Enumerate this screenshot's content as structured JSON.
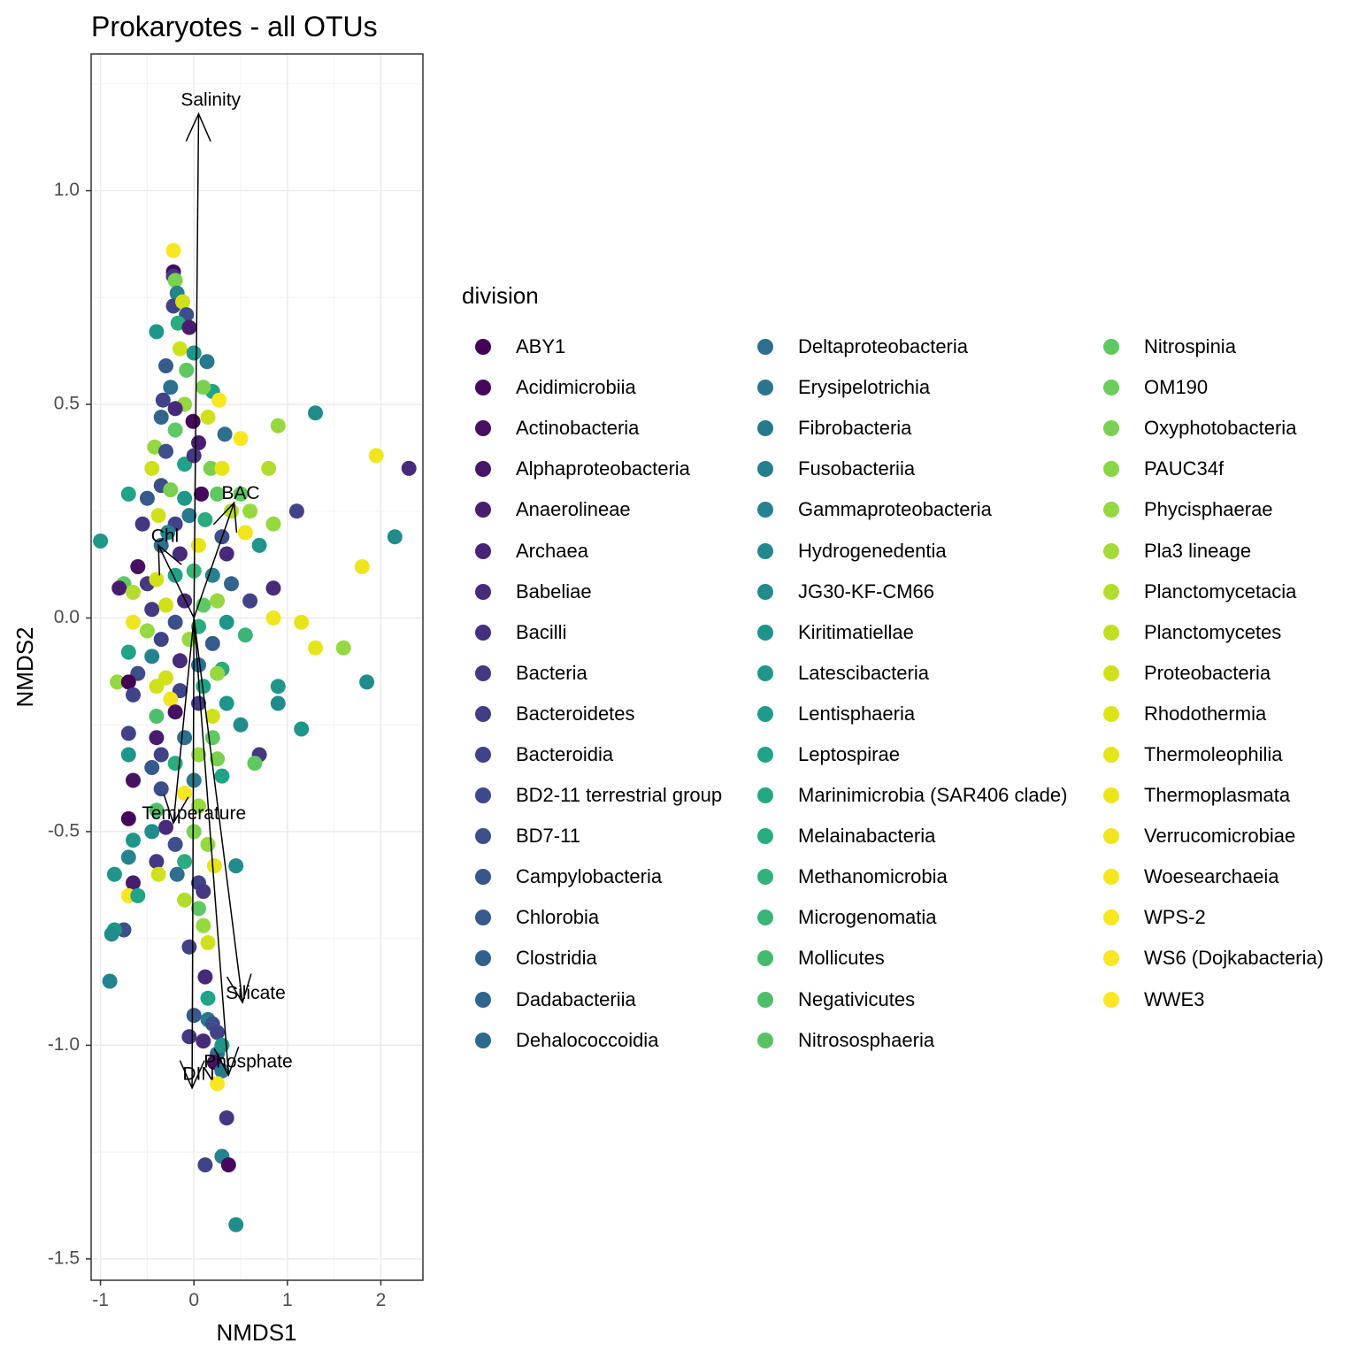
{
  "chart_data": {
    "type": "scatter",
    "title": "Prokaryotes - all OTUs",
    "xlabel": "NMDS1",
    "ylabel": "NMDS2",
    "xlim": [
      -1.1,
      2.45
    ],
    "ylim": [
      -1.55,
      1.32
    ],
    "x_ticks": [
      -1,
      0,
      1,
      2
    ],
    "x_tick_labels": [
      "-1",
      "0",
      "1",
      "2"
    ],
    "y_ticks": [
      -1.5,
      -1.0,
      -0.5,
      0.0,
      0.5,
      1.0
    ],
    "y_tick_labels": [
      "-1.5",
      "-1.0",
      "-0.5",
      "0.0",
      "0.5",
      "1.0"
    ],
    "grid": true,
    "legend_title": "division",
    "legend_position": "right",
    "divisions": [
      "ABY1",
      "Acidimicrobiia",
      "Actinobacteria",
      "Alphaproteobacteria",
      "Anaerolineae",
      "Archaea",
      "Babeliae",
      "Bacilli",
      "Bacteria",
      "Bacteroidetes",
      "Bacteroidia",
      "BD2-11 terrestrial group",
      "BD7-11",
      "Campylobacteria",
      "Chlorobia",
      "Clostridia",
      "Dadabacteriia",
      "Dehalococcoidia",
      "Deltaproteobacteria",
      "Erysipelotrichia",
      "Fibrobacteria",
      "Fusobacteriia",
      "Gammaproteobacteria",
      "Hydrogenedentia",
      "JG30-KF-CM66",
      "Kiritimatiellae",
      "Latescibacteria",
      "Lentisphaeria",
      "Leptospirae",
      "Marinimicrobia (SAR406 clade)",
      "Melainabacteria",
      "Methanomicrobia",
      "Microgenomatia",
      "Mollicutes",
      "Negativicutes",
      "Nitrososphaeria",
      "Nitrospinia",
      "OM190",
      "Oxyphotobacteria",
      "PAUC34f",
      "Phycisphaerae",
      "Pla3 lineage",
      "Planctomycetacia",
      "Planctomycetes",
      "Proteobacteria",
      "Rhodothermia",
      "Thermoleophilia",
      "Thermoplasmata",
      "Verrucomicrobiae",
      "Woesearchaeia",
      "WPS-2",
      "WS6 (Dojkabacteria)",
      "WWE3"
    ],
    "colors": [
      "#440154",
      "#46085C",
      "#471063",
      "#481769",
      "#481D6F",
      "#482475",
      "#472B7A",
      "#46307E",
      "#453781",
      "#433D84",
      "#404387",
      "#3E4989",
      "#3C4F8A",
      "#39558C",
      "#365A8C",
      "#335F8D",
      "#31658E",
      "#2E6A8E",
      "#2C6F8E",
      "#2A748E",
      "#28798E",
      "#267E8E",
      "#24838E",
      "#22888E",
      "#208D8C",
      "#1F928C",
      "#1E978A",
      "#1F9C89",
      "#20A386",
      "#24A884",
      "#2AAC80",
      "#32B17B",
      "#3AB577",
      "#44BA71",
      "#4EBE6B",
      "#59C264",
      "#5EC962",
      "#6CCD5A",
      "#7AD151",
      "#88D548",
      "#95D840",
      "#A5DB36",
      "#B3DD2D",
      "#C2DF23",
      "#D0E11C",
      "#DDE318",
      "#E7E419",
      "#EDE51B",
      "#F0E51F",
      "#F4E61E",
      "#F7E620",
      "#FAE622",
      "#FDE725"
    ],
    "vectors": [
      {
        "label": "Salinity",
        "x": 0.05,
        "y": 1.18,
        "label_x": 0.18,
        "label_y": 1.21
      },
      {
        "label": "BAC",
        "x": 0.43,
        "y": 0.27,
        "label_x": 0.5,
        "label_y": 0.29
      },
      {
        "label": "Chl",
        "x": -0.38,
        "y": 0.17,
        "label_x": -0.31,
        "label_y": 0.19
      },
      {
        "label": "Temperature",
        "x": -0.22,
        "y": -0.48,
        "label_x": 0.0,
        "label_y": -0.46
      },
      {
        "label": "Silicate",
        "x": 0.52,
        "y": -0.9,
        "label_x": 0.66,
        "label_y": -0.88
      },
      {
        "label": "Phosphate",
        "x": 0.37,
        "y": -1.07,
        "label_x": 0.58,
        "label_y": -1.04
      },
      {
        "label": "DIN",
        "x": -0.02,
        "y": -1.1,
        "label_x": 0.05,
        "label_y": -1.07
      }
    ],
    "points": [
      [
        -0.22,
        0.86,
        50
      ],
      [
        -0.22,
        0.81,
        1
      ],
      [
        -0.22,
        0.8,
        8
      ],
      [
        -0.2,
        0.79,
        38
      ],
      [
        -0.18,
        0.76,
        22
      ],
      [
        -0.22,
        0.73,
        10
      ],
      [
        -0.12,
        0.74,
        44
      ],
      [
        -0.08,
        0.71,
        12
      ],
      [
        -0.4,
        0.67,
        26
      ],
      [
        -0.17,
        0.69,
        30
      ],
      [
        -0.05,
        0.68,
        4
      ],
      [
        -0.15,
        0.63,
        44
      ],
      [
        0.14,
        0.6,
        20
      ],
      [
        0.0,
        0.62,
        26
      ],
      [
        -0.3,
        0.59,
        14
      ],
      [
        -0.08,
        0.58,
        36
      ],
      [
        -0.25,
        0.54,
        18
      ],
      [
        0.2,
        0.53,
        28
      ],
      [
        0.1,
        0.54,
        38
      ],
      [
        0.27,
        0.51,
        50
      ],
      [
        -0.33,
        0.51,
        10
      ],
      [
        -0.1,
        0.5,
        40
      ],
      [
        -0.2,
        0.49,
        6
      ],
      [
        -0.35,
        0.47,
        16
      ],
      [
        0.15,
        0.47,
        44
      ],
      [
        -0.01,
        0.46,
        1
      ],
      [
        0.5,
        0.42,
        50
      ],
      [
        0.9,
        0.45,
        40
      ],
      [
        1.3,
        0.48,
        24
      ],
      [
        -0.2,
        0.44,
        36
      ],
      [
        0.33,
        0.43,
        18
      ],
      [
        0.05,
        0.41,
        4
      ],
      [
        -0.42,
        0.4,
        40
      ],
      [
        -0.3,
        0.39,
        12
      ],
      [
        -0.1,
        0.36,
        28
      ],
      [
        0.0,
        0.38,
        8
      ],
      [
        0.18,
        0.35,
        38
      ],
      [
        0.3,
        0.35,
        46
      ],
      [
        0.8,
        0.35,
        42
      ],
      [
        -0.45,
        0.35,
        44
      ],
      [
        -0.35,
        0.31,
        12
      ],
      [
        -0.25,
        0.3,
        38
      ],
      [
        -0.1,
        0.28,
        26
      ],
      [
        0.08,
        0.29,
        1
      ],
      [
        0.25,
        0.29,
        36
      ],
      [
        0.5,
        0.29,
        36
      ],
      [
        -0.7,
        0.29,
        28
      ],
      [
        -0.5,
        0.28,
        14
      ],
      [
        1.95,
        0.38,
        48
      ],
      [
        2.3,
        0.35,
        6
      ],
      [
        -0.38,
        0.24,
        44
      ],
      [
        -0.2,
        0.22,
        10
      ],
      [
        -0.05,
        0.24,
        20
      ],
      [
        0.12,
        0.23,
        30
      ],
      [
        0.4,
        0.25,
        42
      ],
      [
        0.6,
        0.25,
        40
      ],
      [
        1.1,
        0.25,
        10
      ],
      [
        -0.55,
        0.22,
        8
      ],
      [
        0.85,
        0.22,
        40
      ],
      [
        -0.28,
        0.2,
        22
      ],
      [
        0.3,
        0.19,
        12
      ],
      [
        0.55,
        0.2,
        48
      ],
      [
        2.15,
        0.19,
        24
      ],
      [
        -1.0,
        0.18,
        26
      ],
      [
        -0.35,
        0.17,
        18
      ],
      [
        0.05,
        0.17,
        46
      ],
      [
        0.35,
        0.15,
        6
      ],
      [
        0.7,
        0.17,
        26
      ],
      [
        -0.15,
        0.15,
        6
      ],
      [
        1.8,
        0.12,
        48
      ],
      [
        -0.6,
        0.12,
        2
      ],
      [
        -0.75,
        0.08,
        36
      ],
      [
        -0.5,
        0.08,
        8
      ],
      [
        -0.4,
        0.09,
        44
      ],
      [
        -0.2,
        0.1,
        28
      ],
      [
        0.0,
        0.11,
        32
      ],
      [
        0.2,
        0.1,
        22
      ],
      [
        0.4,
        0.08,
        16
      ],
      [
        0.85,
        0.07,
        6
      ],
      [
        -0.8,
        0.07,
        4
      ],
      [
        -0.65,
        0.06,
        42
      ],
      [
        0.6,
        0.04,
        10
      ],
      [
        0.25,
        0.04,
        40
      ],
      [
        -0.1,
        0.04,
        6
      ],
      [
        0.1,
        0.03,
        36
      ],
      [
        -0.45,
        0.02,
        8
      ],
      [
        -0.3,
        0.03,
        44
      ],
      [
        0.85,
        0.0,
        48
      ],
      [
        -0.65,
        -0.01,
        48
      ],
      [
        -0.2,
        -0.01,
        12
      ],
      [
        0.05,
        -0.02,
        30
      ],
      [
        0.35,
        -0.01,
        26
      ],
      [
        1.15,
        -0.01,
        46
      ],
      [
        -0.5,
        -0.03,
        40
      ],
      [
        0.55,
        -0.04,
        32
      ],
      [
        -0.35,
        -0.05,
        10
      ],
      [
        -0.05,
        -0.05,
        40
      ],
      [
        0.2,
        -0.06,
        14
      ],
      [
        1.3,
        -0.07,
        46
      ],
      [
        1.6,
        -0.07,
        40
      ],
      [
        -0.7,
        -0.08,
        28
      ],
      [
        -0.45,
        -0.09,
        22
      ],
      [
        -0.15,
        -0.1,
        6
      ],
      [
        0.05,
        -0.11,
        18
      ],
      [
        0.3,
        -0.12,
        30
      ],
      [
        -0.6,
        -0.13,
        12
      ],
      [
        -0.3,
        -0.14,
        44
      ],
      [
        0.25,
        -0.13,
        40
      ],
      [
        -0.82,
        -0.15,
        40
      ],
      [
        -0.7,
        -0.15,
        0
      ],
      [
        -0.4,
        -0.16,
        44
      ],
      [
        -0.15,
        -0.17,
        10
      ],
      [
        0.1,
        -0.16,
        28
      ],
      [
        0.9,
        -0.16,
        26
      ],
      [
        1.85,
        -0.15,
        24
      ],
      [
        -0.65,
        -0.18,
        10
      ],
      [
        -0.25,
        -0.19,
        48
      ],
      [
        0.05,
        -0.2,
        8
      ],
      [
        0.35,
        -0.2,
        26
      ],
      [
        0.9,
        -0.2,
        24
      ],
      [
        -0.2,
        -0.22,
        2
      ],
      [
        0.2,
        -0.23,
        44
      ],
      [
        -0.4,
        -0.23,
        34
      ],
      [
        0.5,
        -0.25,
        24
      ],
      [
        1.15,
        -0.26,
        26
      ],
      [
        -0.7,
        -0.27,
        10
      ],
      [
        -0.4,
        -0.28,
        4
      ],
      [
        -0.1,
        -0.28,
        18
      ],
      [
        0.2,
        -0.28,
        36
      ],
      [
        -0.7,
        -0.32,
        26
      ],
      [
        -0.35,
        -0.32,
        10
      ],
      [
        0.05,
        -0.32,
        40
      ],
      [
        0.7,
        -0.32,
        8
      ],
      [
        -0.45,
        -0.35,
        14
      ],
      [
        -0.2,
        -0.34,
        30
      ],
      [
        0.25,
        -0.33,
        38
      ],
      [
        0.65,
        -0.34,
        36
      ],
      [
        -0.65,
        -0.38,
        2
      ],
      [
        -0.35,
        -0.4,
        12
      ],
      [
        0.0,
        -0.38,
        20
      ],
      [
        0.3,
        -0.37,
        28
      ],
      [
        -0.1,
        -0.41,
        50
      ],
      [
        -0.4,
        -0.45,
        34
      ],
      [
        0.05,
        -0.44,
        40
      ],
      [
        -0.7,
        -0.47,
        1
      ],
      [
        -0.3,
        -0.49,
        6
      ],
      [
        -0.45,
        -0.5,
        24
      ],
      [
        0.0,
        -0.5,
        38
      ],
      [
        -0.65,
        -0.52,
        26
      ],
      [
        -0.2,
        -0.53,
        12
      ],
      [
        0.15,
        -0.53,
        40
      ],
      [
        -0.7,
        -0.56,
        22
      ],
      [
        -0.4,
        -0.57,
        8
      ],
      [
        -0.1,
        -0.57,
        30
      ],
      [
        0.22,
        -0.58,
        46
      ],
      [
        0.45,
        -0.58,
        24
      ],
      [
        -0.85,
        -0.6,
        26
      ],
      [
        -0.38,
        -0.6,
        44
      ],
      [
        -0.18,
        -0.6,
        18
      ],
      [
        0.05,
        -0.62,
        10
      ],
      [
        -0.65,
        -0.62,
        4
      ],
      [
        -0.7,
        -0.65,
        50
      ],
      [
        -0.6,
        -0.65,
        28
      ],
      [
        0.1,
        -0.64,
        8
      ],
      [
        -0.1,
        -0.66,
        42
      ],
      [
        0.05,
        -0.68,
        36
      ],
      [
        0.1,
        -0.72,
        40
      ],
      [
        -0.75,
        -0.73,
        12
      ],
      [
        -0.85,
        -0.73,
        26
      ],
      [
        0.15,
        -0.76,
        44
      ],
      [
        -0.05,
        -0.77,
        10
      ],
      [
        -0.88,
        -0.74,
        24
      ],
      [
        0.12,
        -0.84,
        6
      ],
      [
        -0.9,
        -0.85,
        22
      ],
      [
        0.15,
        -0.89,
        28
      ],
      [
        0.0,
        -0.93,
        14
      ],
      [
        0.15,
        -0.94,
        20
      ],
      [
        0.2,
        -0.95,
        12
      ],
      [
        0.25,
        -0.97,
        10
      ],
      [
        -0.05,
        -0.98,
        8
      ],
      [
        0.1,
        -0.99,
        6
      ],
      [
        0.25,
        -1.02,
        18
      ],
      [
        0.3,
        -1.0,
        26
      ],
      [
        0.22,
        -1.04,
        2
      ],
      [
        0.3,
        -1.06,
        20
      ],
      [
        0.25,
        -1.09,
        50
      ],
      [
        0.35,
        -1.17,
        8
      ],
      [
        0.3,
        -1.26,
        22
      ],
      [
        0.12,
        -1.28,
        10
      ],
      [
        0.37,
        -1.28,
        1
      ],
      [
        0.45,
        -1.42,
        24
      ]
    ]
  }
}
